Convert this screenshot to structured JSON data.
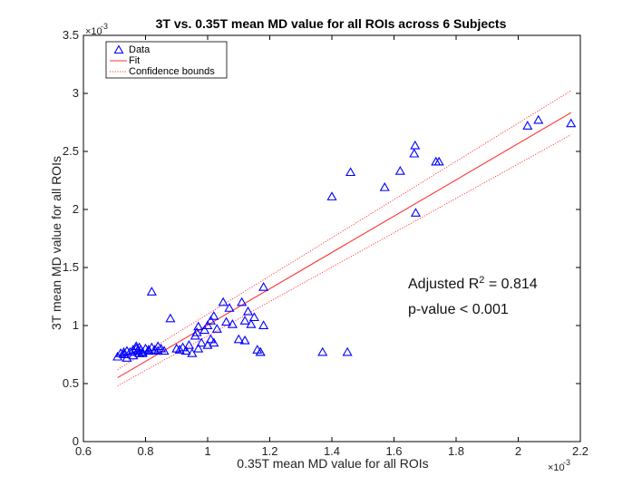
{
  "chart_data": {
    "type": "scatter",
    "title": "3T vs. 0.35T mean MD value for all ROIs across 6 Subjects",
    "xlabel": "0.35T mean MD value for all ROIs",
    "ylabel": "3T mean MD value for all ROIs",
    "x_scale_label": "×10",
    "x_scale_exp": "-3",
    "y_scale_label": "×10",
    "y_scale_exp": "-3",
    "xlim": [
      0.6,
      2.2
    ],
    "ylim": [
      0,
      3.5
    ],
    "xticks": [
      0.6,
      0.8,
      1,
      1.2,
      1.4,
      1.6,
      1.8,
      2,
      2.2
    ],
    "xtick_labels": [
      "0.6",
      "0.8",
      "1",
      "1.2",
      "1.4",
      "1.6",
      "1.8",
      "2",
      "2.2"
    ],
    "yticks": [
      0,
      0.5,
      1,
      1.5,
      2,
      2.5,
      3,
      3.5
    ],
    "ytick_labels": [
      "0",
      "0.5",
      "1",
      "1.5",
      "2",
      "2.5",
      "3",
      "3.5"
    ],
    "legend": {
      "location": "top-left",
      "entries": [
        {
          "label": "Data",
          "style": "marker"
        },
        {
          "label": "Fit",
          "style": "solid"
        },
        {
          "label": "Confidence bounds",
          "style": "dotted"
        }
      ]
    },
    "colors": {
      "data": "#0000ff",
      "fit": "#ff3333",
      "bounds": "#ff3333"
    },
    "fit": {
      "slope": 1.564,
      "intercept": -0.56
    },
    "bounds": {
      "upper_offset_start": 0.07,
      "upper_offset_end": 0.19,
      "lower_offset_start": -0.07,
      "lower_offset_end": -0.19
    },
    "annotation": {
      "adjusted_prefix": "Adjusted R",
      "adjusted_sup": "2",
      "adjusted_suffix": " = 0.814",
      "pvalue": "p-value < 0.001"
    },
    "series": [
      {
        "name": "Data",
        "x": [
          0.71,
          0.72,
          0.73,
          0.74,
          0.75,
          0.76,
          0.77,
          0.775,
          0.78,
          0.785,
          0.79,
          0.8,
          0.81,
          0.82,
          0.83,
          0.84,
          0.85,
          0.86,
          0.88,
          0.9,
          0.91,
          0.92,
          0.93,
          0.94,
          0.96,
          0.965,
          0.97,
          0.98,
          0.99,
          1.0,
          1.01,
          1.02,
          1.03,
          1.05,
          1.07,
          1.1,
          1.11,
          1.12,
          1.13,
          1.14,
          1.15,
          1.17,
          1.18,
          1.37,
          1.45,
          1.4,
          1.46,
          1.57,
          1.62,
          1.665,
          1.668,
          1.67,
          1.735,
          1.745,
          2.03,
          2.065,
          2.17,
          0.76,
          0.74,
          0.81,
          0.73,
          0.79,
          0.84,
          0.95,
          0.97,
          1.06,
          1.08,
          1.02,
          1.12,
          1.16,
          1.18,
          0.82,
          1.17,
          1.0,
          1.01,
          0.78,
          0.77
        ],
        "y": [
          0.73,
          0.76,
          0.75,
          0.78,
          0.77,
          0.79,
          0.8,
          0.78,
          0.81,
          0.79,
          0.77,
          0.8,
          0.78,
          0.81,
          0.79,
          0.82,
          0.8,
          0.78,
          1.06,
          0.8,
          0.79,
          0.81,
          0.78,
          0.83,
          0.91,
          0.94,
          0.99,
          0.85,
          0.96,
          1.0,
          0.88,
          1.08,
          0.97,
          1.2,
          1.15,
          0.88,
          1.2,
          1.04,
          1.12,
          1.01,
          1.07,
          0.77,
          1.33,
          0.77,
          0.77,
          2.11,
          2.32,
          2.19,
          2.33,
          2.48,
          2.55,
          1.97,
          2.41,
          2.41,
          2.72,
          2.77,
          2.74,
          0.74,
          0.72,
          0.79,
          0.77,
          0.76,
          0.78,
          0.76,
          0.8,
          1.03,
          1.01,
          0.85,
          0.87,
          0.79,
          1.0,
          1.29,
          0.77,
          0.83,
          1.04,
          0.76,
          0.82
        ]
      }
    ]
  }
}
